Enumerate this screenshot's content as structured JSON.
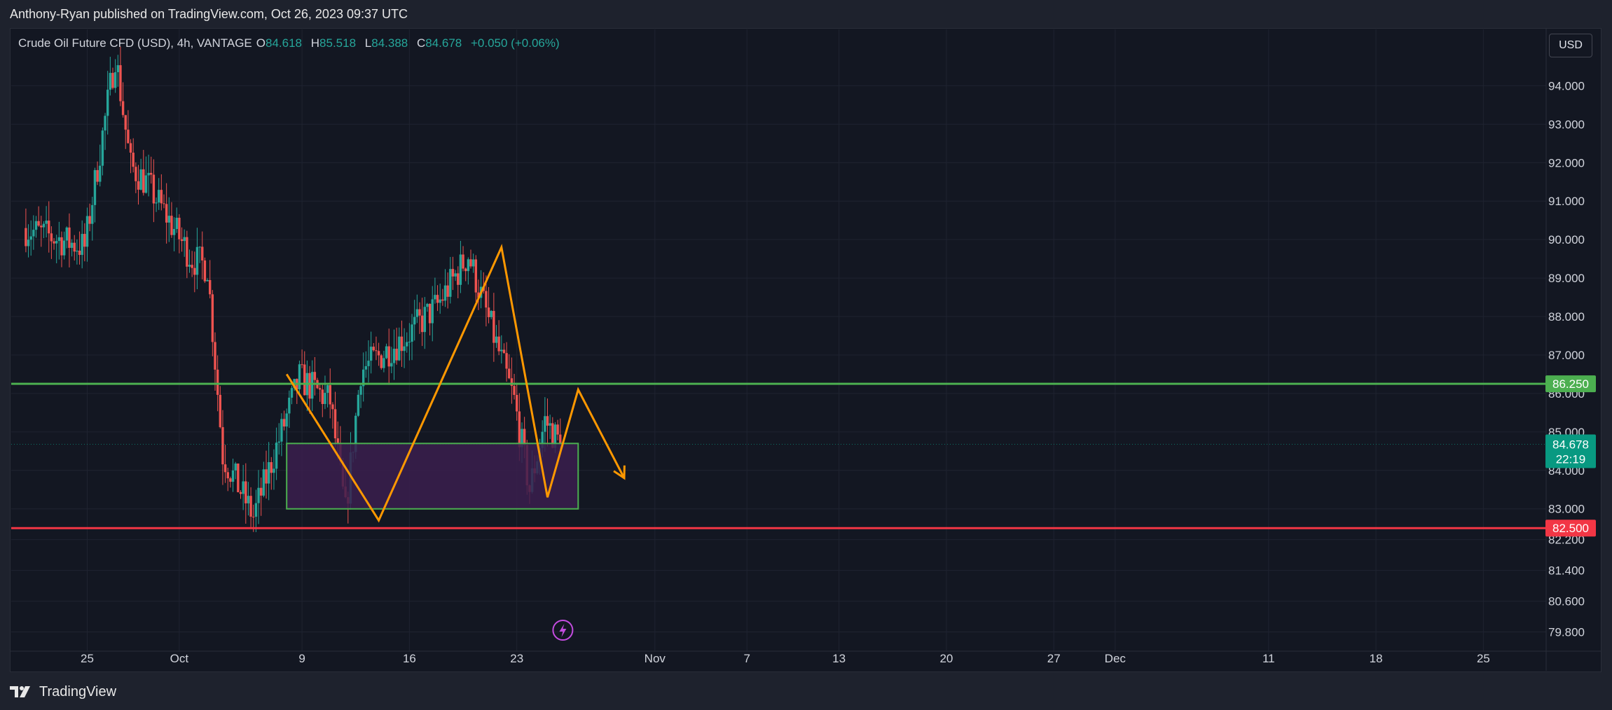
{
  "header": {
    "publisher_line": "Anthony-Ryan published on TradingView.com, Oct 26, 2023 09:37 UTC"
  },
  "legend": {
    "symbol": "Crude Oil Future CFD (USD), 4h, VANTAGE",
    "open_label": "O",
    "open": "84.618",
    "high_label": "H",
    "high": "85.518",
    "low_label": "L",
    "low": "84.388",
    "close_label": "C",
    "close": "84.678",
    "change": "+0.050 (+0.06%)"
  },
  "currency_button": "USD",
  "footer": {
    "brand": "TradingView"
  },
  "colors": {
    "up": "#26a69a",
    "down": "#ef5350",
    "background": "#131722",
    "support_line": "#f23645",
    "resistance_line": "#4caf50",
    "pattern": "#ff9800",
    "zone_fill": "#3b1f4e",
    "zone_border": "#4caf50",
    "price_badge": "#089981"
  },
  "chart_data": {
    "type": "candlestick",
    "timeframe": "4h",
    "y_axis": {
      "range": [
        79.3,
        95.5
      ],
      "ticks": [
        "94.000",
        "93.000",
        "92.000",
        "91.000",
        "90.000",
        "89.000",
        "88.000",
        "87.000",
        "86.000",
        "85.000",
        "84.000",
        "83.000",
        "82.200",
        "81.400",
        "80.600",
        "79.800"
      ],
      "tick_values": [
        94,
        93,
        92,
        91,
        90,
        89,
        88,
        87,
        86,
        85,
        84,
        83,
        82.2,
        81.4,
        80.6,
        79.8
      ]
    },
    "x_axis": {
      "ticks": [
        {
          "label": "25",
          "date": "2023-09-25"
        },
        {
          "label": "Oct",
          "date": "2023-10-01"
        },
        {
          "label": "9",
          "date": "2023-10-09"
        },
        {
          "label": "16",
          "date": "2023-10-16"
        },
        {
          "label": "23",
          "date": "2023-10-23"
        },
        {
          "label": "Nov",
          "date": "2023-11-01"
        },
        {
          "label": "7",
          "date": "2023-11-07"
        },
        {
          "label": "13",
          "date": "2023-11-13"
        },
        {
          "label": "20",
          "date": "2023-11-20"
        },
        {
          "label": "27",
          "date": "2023-11-27"
        },
        {
          "label": "Dec",
          "date": "2023-12-01"
        },
        {
          "label": "11",
          "date": "2023-12-11"
        },
        {
          "label": "18",
          "date": "2023-12-18"
        },
        {
          "label": "25",
          "date": "2023-12-25"
        }
      ]
    },
    "swing_points": [
      {
        "date": "2023-09-21",
        "close": 90.3
      },
      {
        "date": "2023-09-25",
        "close": 89.8
      },
      {
        "date": "2023-09-27",
        "close": 94.8
      },
      {
        "date": "2023-09-28",
        "close": 91.9
      },
      {
        "date": "2023-09-29",
        "close": 91.5
      },
      {
        "date": "2023-10-02",
        "close": 89.5
      },
      {
        "date": "2023-10-03",
        "close": 89.3
      },
      {
        "date": "2023-10-04",
        "close": 84.4
      },
      {
        "date": "2023-10-06",
        "close": 82.8
      },
      {
        "date": "2023-10-09",
        "close": 86.4
      },
      {
        "date": "2023-10-11",
        "close": 85.8
      },
      {
        "date": "2023-10-12",
        "close": 82.9
      },
      {
        "date": "2023-10-13",
        "close": 86.6
      },
      {
        "date": "2023-10-16",
        "close": 87.5
      },
      {
        "date": "2023-10-18",
        "close": 88.3
      },
      {
        "date": "2023-10-20",
        "close": 89.6
      },
      {
        "date": "2023-10-23",
        "close": 85.8
      },
      {
        "date": "2023-10-24",
        "close": 83.5
      },
      {
        "date": "2023-10-25",
        "close": 85.3
      },
      {
        "date": "2023-10-26",
        "close": 84.678
      }
    ],
    "last_price": 84.678,
    "last_price_label": "84.678",
    "countdown": "22:19",
    "horizontal_levels": [
      {
        "value": 86.25,
        "label": "86.250",
        "color": "#4caf50"
      },
      {
        "value": 82.5,
        "label": "82.500",
        "color": "#f23645"
      }
    ],
    "zone": {
      "start": "2023-10-08",
      "end": "2023-10-27",
      "top": 84.7,
      "bottom": 83.0
    },
    "pattern": [
      {
        "date": "2023-10-08",
        "price": 86.5
      },
      {
        "date": "2023-10-14",
        "price": 82.7
      },
      {
        "date": "2023-10-22",
        "price": 89.8
      },
      {
        "date": "2023-10-25",
        "price": 83.3
      },
      {
        "date": "2023-10-27",
        "price": 86.1
      },
      {
        "date": "2023-10-30",
        "price": 83.8
      }
    ]
  }
}
